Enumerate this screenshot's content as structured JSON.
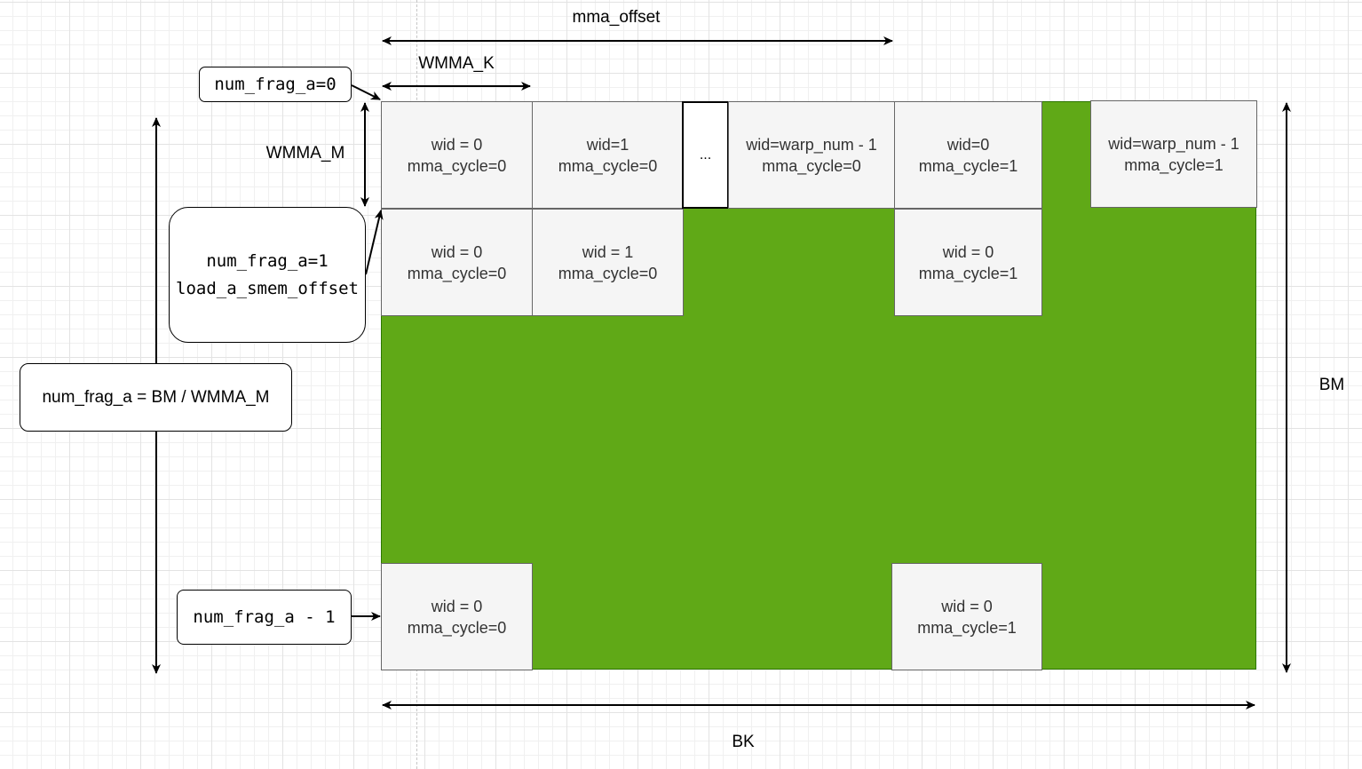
{
  "labels": {
    "mma_offset": "mma_offset",
    "wmma_k": "WMMA_K",
    "wmma_m": "WMMA_M",
    "bm": "BM",
    "bk": "BK"
  },
  "callouts": {
    "frag0": "num_frag_a=0",
    "frag1_line1": "num_frag_a=1",
    "frag1_line2": "load_a_smem_offset",
    "frag_count": "num_frag_a = BM / WMMA_M",
    "frag_last": "num_frag_a - 1"
  },
  "cells": {
    "r0c0": [
      "wid = 0",
      "mma_cycle=0"
    ],
    "r0c1": [
      "wid=1",
      "mma_cycle=0"
    ],
    "r0_ellipsis": "...",
    "r0c3": [
      "wid=warp_num - 1",
      "mma_cycle=0"
    ],
    "r0c4": [
      "wid=0",
      "mma_cycle=1"
    ],
    "r0c6": [
      "wid=warp_num - 1",
      "mma_cycle=1"
    ],
    "r1c0": [
      "wid = 0",
      "mma_cycle=0"
    ],
    "r1c1": [
      "wid = 1",
      "mma_cycle=0"
    ],
    "r1c4": [
      "wid = 0",
      "mma_cycle=1"
    ],
    "rLc0": [
      "wid = 0",
      "mma_cycle=0"
    ],
    "rLc4": [
      "wid = 0",
      "mma_cycle=1"
    ]
  },
  "colors": {
    "matrix_fill": "#60a917",
    "cell_fill": "#f5f5f5",
    "arrow": "#000000"
  }
}
